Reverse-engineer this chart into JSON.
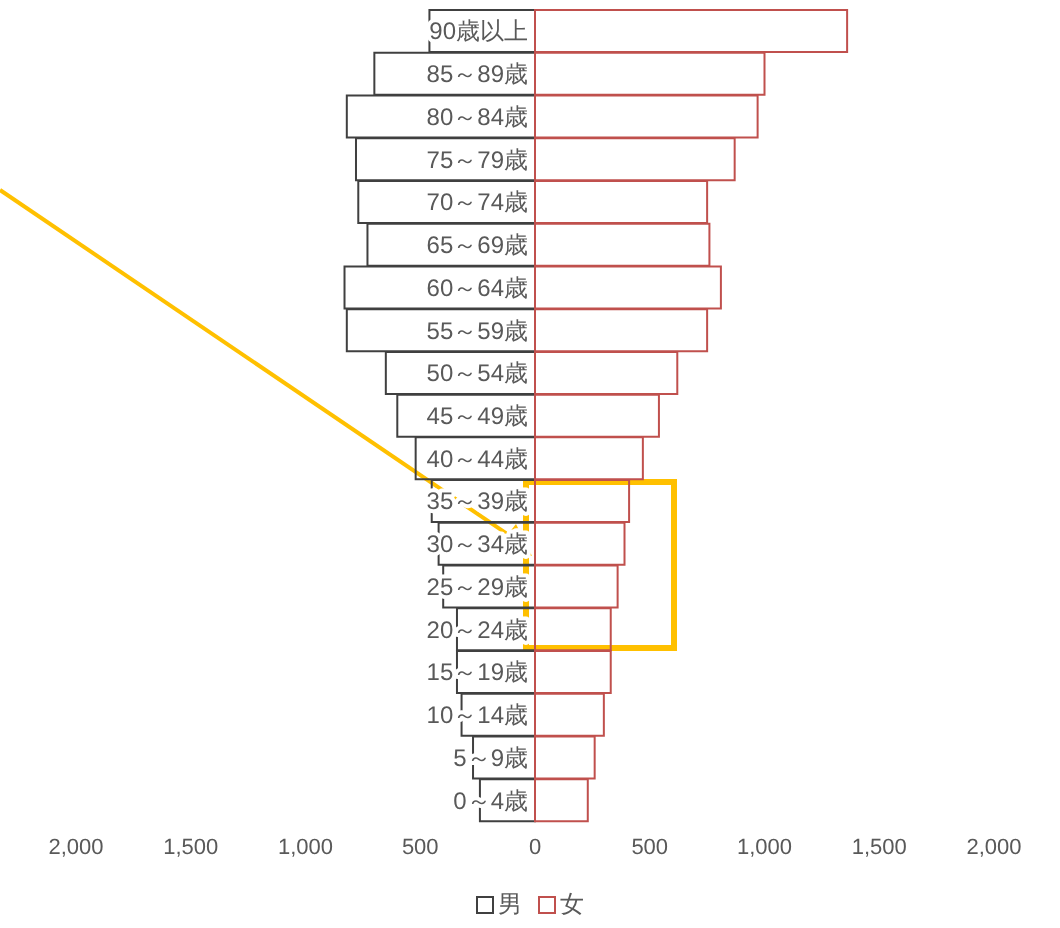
{
  "chart_data": {
    "type": "bar",
    "orientation": "horizontal",
    "stacked": true,
    "categories": [
      "90歳以上",
      "85～89歳",
      "80～84歳",
      "75～79歳",
      "70～74歳",
      "65～69歳",
      "60～64歳",
      "55～59歳",
      "50～54歳",
      "45～49歳",
      "40～44歳",
      "35～39歳",
      "30～34歳",
      "25～29歳",
      "20～24歳",
      "15～19歳",
      "10～14歳",
      "5～9歳",
      "0～4歳"
    ],
    "series": [
      {
        "name": "男",
        "color": "#404040",
        "values": [
          -460,
          -700,
          -820,
          -780,
          -770,
          -730,
          -830,
          -820,
          -650,
          -600,
          -520,
          -450,
          -420,
          -400,
          -340,
          -340,
          -320,
          -270,
          -240
        ]
      },
      {
        "name": "女",
        "color": "#c0504d",
        "values": [
          1360,
          1000,
          970,
          870,
          750,
          760,
          810,
          750,
          620,
          540,
          470,
          410,
          390,
          360,
          330,
          330,
          300,
          260,
          230
        ]
      }
    ],
    "xlim": [
      -2000,
      2000
    ],
    "xticks": [
      {
        "value": -2000,
        "label": "2,000"
      },
      {
        "value": -1500,
        "label": "1,500"
      },
      {
        "value": -1000,
        "label": "1,000"
      },
      {
        "value": -500,
        "label": "500"
      },
      0,
      500,
      {
        "value": 1000,
        "label": "1,000"
      },
      {
        "value": 1500,
        "label": "1,500"
      },
      {
        "value": 2000,
        "label": "2,000"
      }
    ],
    "grid": false,
    "legend": "bottom"
  }
}
